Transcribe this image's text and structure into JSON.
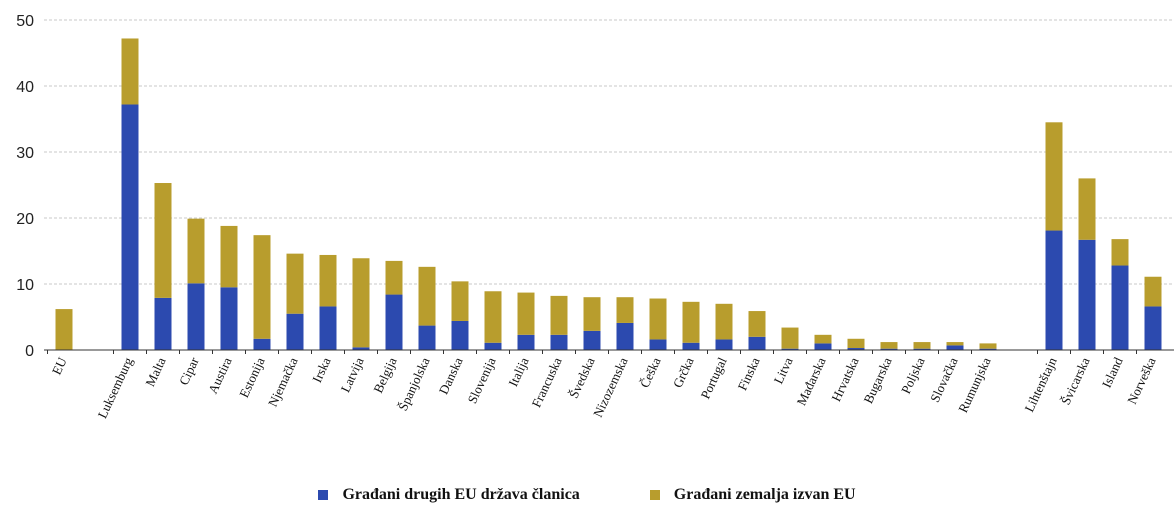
{
  "chart_data": {
    "type": "bar",
    "stacked": true,
    "ylim": [
      0,
      50
    ],
    "yticks": [
      0,
      10,
      20,
      30,
      40,
      50
    ],
    "grid": true,
    "legend_position": "bottom",
    "categories": [
      "EU",
      "Luksemburg",
      "Malta",
      "Cipar",
      "Austira",
      "Estonija",
      "Njemačka",
      "Irska",
      "Latvija",
      "Belgija",
      "Španjolska",
      "Danska",
      "Slovenija",
      "Italija",
      "Francuska",
      "Švedska",
      "Nizozemska",
      "Češka",
      "Grčka",
      "Portugal",
      "Finska",
      "Litva",
      "Mađarska",
      "Hrvatska",
      "Bugarska",
      "Poljska",
      "Slovačka",
      "Rumunjska",
      "Lihtenštajn",
      "Švicarska",
      "Island",
      "Norveška"
    ],
    "series": [
      {
        "name": "Građani drugih EU država članica",
        "color": "#2c4aaf",
        "values": [
          0,
          37.2,
          7.9,
          10.1,
          9.5,
          1.7,
          5.5,
          6.6,
          0.4,
          8.4,
          3.7,
          4.4,
          1.1,
          2.3,
          2.3,
          2.9,
          4.1,
          1.6,
          1.1,
          1.6,
          2.0,
          0.2,
          1.0,
          0.3,
          0.2,
          0.2,
          0.7,
          0.2,
          18.1,
          16.7,
          12.8,
          6.6
        ]
      },
      {
        "name": "Građani zemalja izvan EU",
        "color": "#b89d2d",
        "values": [
          6.2,
          10.0,
          17.4,
          9.8,
          9.3,
          15.7,
          9.1,
          7.8,
          13.5,
          5.1,
          8.9,
          6.0,
          7.8,
          6.4,
          5.9,
          5.1,
          3.9,
          6.2,
          6.2,
          5.4,
          3.9,
          3.2,
          1.3,
          1.4,
          1.0,
          1.0,
          0.5,
          0.8,
          16.4,
          9.3,
          4.0,
          4.5
        ]
      }
    ]
  }
}
